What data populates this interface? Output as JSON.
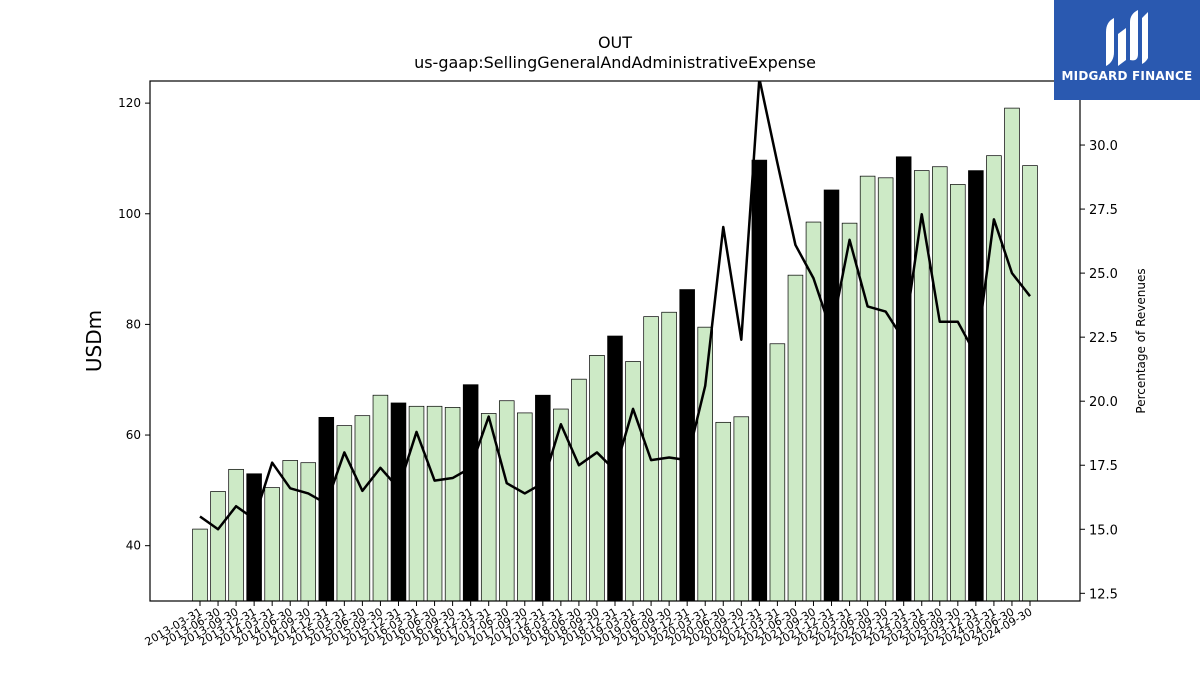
{
  "chart_data": {
    "type": "bar",
    "title": "OUT",
    "subtitle": "us-gaap:SellingGeneralAndAdministrativeExpense",
    "ylabel": "USDm",
    "y2label": "Percentage of Revenues",
    "ylim": [
      30,
      124
    ],
    "y2lim": [
      12.2,
      32.5
    ],
    "yticks": [
      40,
      60,
      80,
      100,
      120
    ],
    "y2ticks": [
      12.5,
      15.0,
      17.5,
      20.0,
      22.5,
      25.0,
      27.5,
      30.0
    ],
    "categories": [
      "2013-03-31",
      "2013-06-30",
      "2013-09-30",
      "2013-12-31",
      "2014-03-31",
      "2014-06-30",
      "2014-09-30",
      "2014-12-31",
      "2015-03-31",
      "2015-06-30",
      "2015-09-30",
      "2015-12-31",
      "2016-03-31",
      "2016-06-30",
      "2016-09-30",
      "2016-12-31",
      "2017-03-31",
      "2017-06-30",
      "2017-09-30",
      "2017-12-31",
      "2018-03-31",
      "2018-06-30",
      "2018-09-30",
      "2018-12-31",
      "2019-03-31",
      "2019-06-30",
      "2019-09-30",
      "2019-12-31",
      "2020-03-31",
      "2020-06-30",
      "2020-09-30",
      "2020-12-31",
      "2021-03-31",
      "2021-06-30",
      "2021-09-30",
      "2021-12-31",
      "2022-03-31",
      "2022-06-30",
      "2022-09-30",
      "2022-12-31",
      "2023-03-31",
      "2023-06-30",
      "2023-09-30",
      "2023-12-31",
      "2024-03-31",
      "2024-06-30",
      "2024-09-30"
    ],
    "series": [
      {
        "values": [
          43.0,
          49.8,
          53.8,
          53.0,
          50.5,
          55.4,
          55.0,
          63.2,
          61.7,
          63.5,
          67.2,
          65.8,
          65.2,
          65.2,
          65.0,
          69.1,
          63.9,
          66.2,
          64.0,
          67.2,
          64.7,
          70.1,
          74.4,
          77.9,
          73.3,
          81.4,
          82.2,
          86.3,
          79.5,
          62.3,
          63.3,
          109.7,
          76.5,
          88.9,
          98.5,
          104.3,
          98.3,
          106.8,
          106.5,
          110.3,
          107.8,
          108.5,
          105.3,
          107.8,
          110.5,
          119.1,
          108.7
        ],
        "highlight": [
          false,
          false,
          false,
          true,
          false,
          false,
          false,
          true,
          false,
          false,
          false,
          true,
          false,
          false,
          false,
          true,
          false,
          false,
          false,
          true,
          false,
          false,
          false,
          true,
          false,
          false,
          false,
          true,
          false,
          false,
          false,
          true,
          false,
          false,
          false,
          true,
          false,
          false,
          false,
          true,
          false,
          false,
          false,
          true,
          false,
          false,
          false
        ]
      },
      {
        "axis": "right",
        "type": "line",
        "values": [
          15.5,
          15.0,
          15.9,
          15.4,
          17.6,
          16.6,
          16.4,
          16.0,
          18.0,
          16.5,
          17.4,
          16.6,
          18.8,
          16.9,
          17.0,
          17.4,
          19.4,
          16.8,
          16.4,
          16.8,
          19.1,
          17.5,
          18.0,
          17.3,
          19.7,
          17.7,
          17.8,
          17.7,
          20.6,
          26.8,
          22.4,
          32.6,
          29.3,
          26.1,
          24.8,
          22.7,
          26.3,
          23.7,
          23.5,
          22.4,
          27.3,
          23.1,
          23.1,
          21.8,
          27.1,
          25.0,
          24.1
        ]
      }
    ],
    "colors": {
      "bar": "#cdeac6",
      "bar_highlight": "#000000",
      "edge": "#000000",
      "line": "#000000"
    }
  },
  "logo": {
    "text": "MIDGARD FINANCE"
  }
}
